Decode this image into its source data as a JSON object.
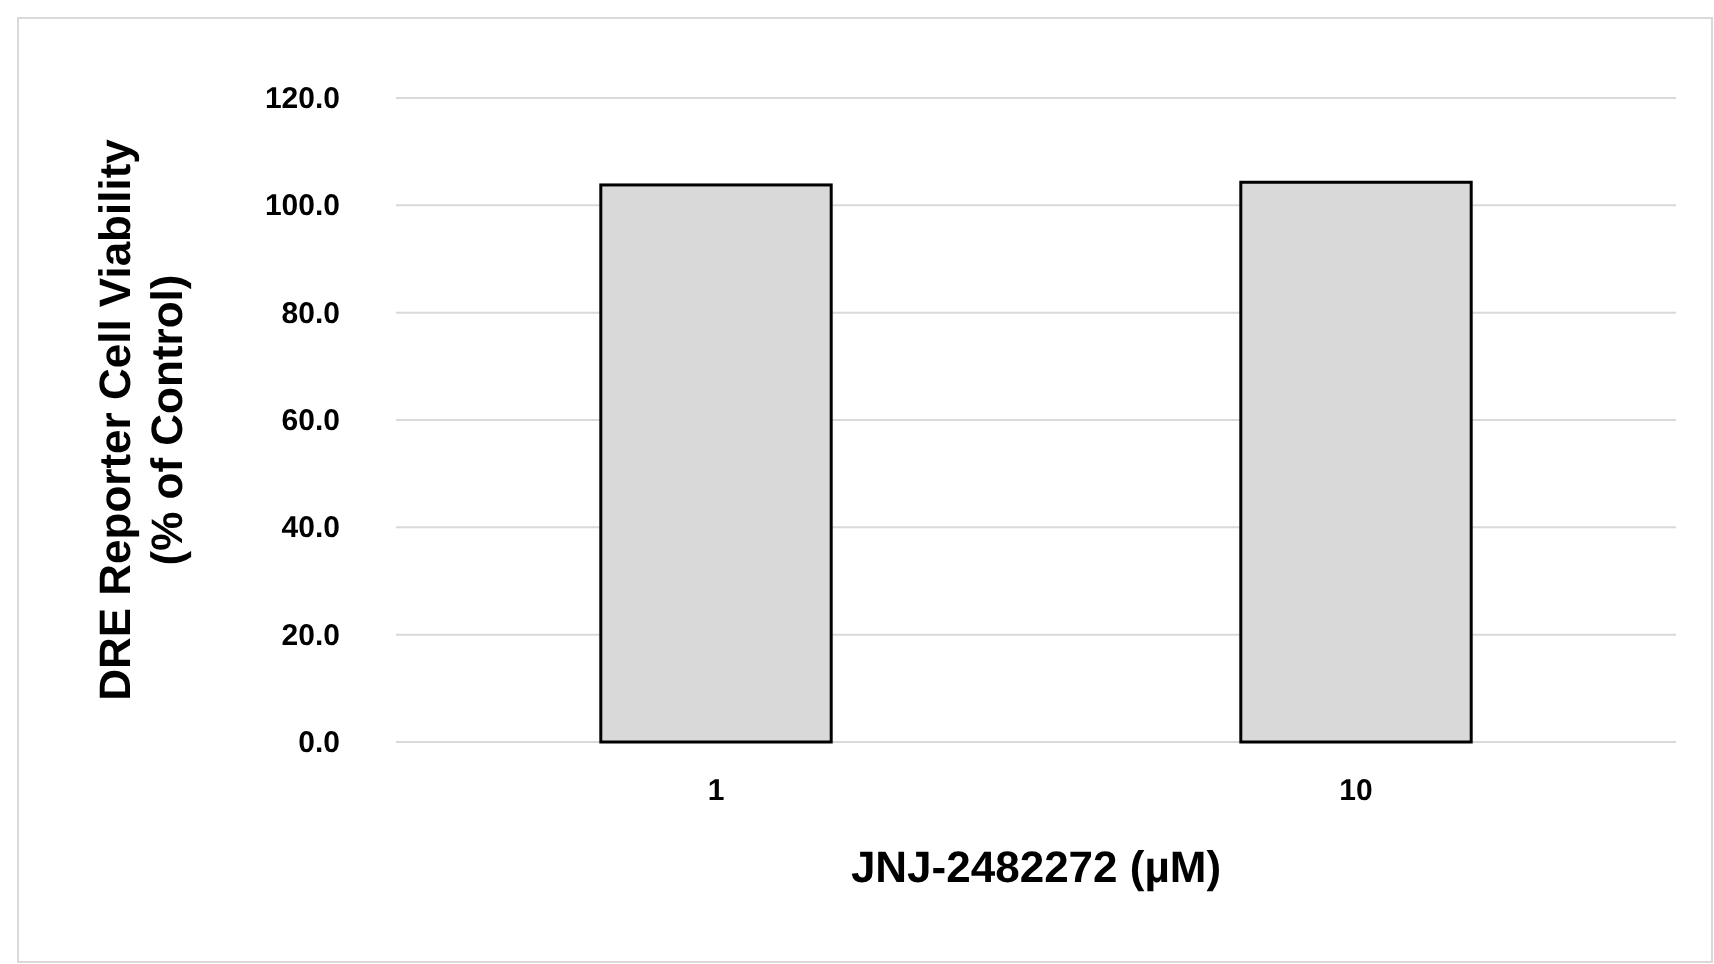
{
  "chart_data": {
    "type": "bar",
    "xlabel": "JNJ-2482272 (µM)",
    "ylabel": "DRE Reporter Cell Viability\n(% of Control)",
    "categories": [
      "1",
      "10"
    ],
    "values": [
      103.8,
      104.3
    ],
    "color": "#d9d9d9",
    "ylim": [
      0,
      120
    ],
    "yticks": [
      {
        "value": 0,
        "label": "0.0"
      },
      {
        "value": 20,
        "label": "20.0"
      },
      {
        "value": 40,
        "label": "40.0"
      },
      {
        "value": 60,
        "label": "60.0"
      },
      {
        "value": 80,
        "label": "80.0"
      },
      {
        "value": 100,
        "label": "100.0"
      },
      {
        "value": 120,
        "label": "120.0"
      }
    ],
    "grid": "y"
  }
}
